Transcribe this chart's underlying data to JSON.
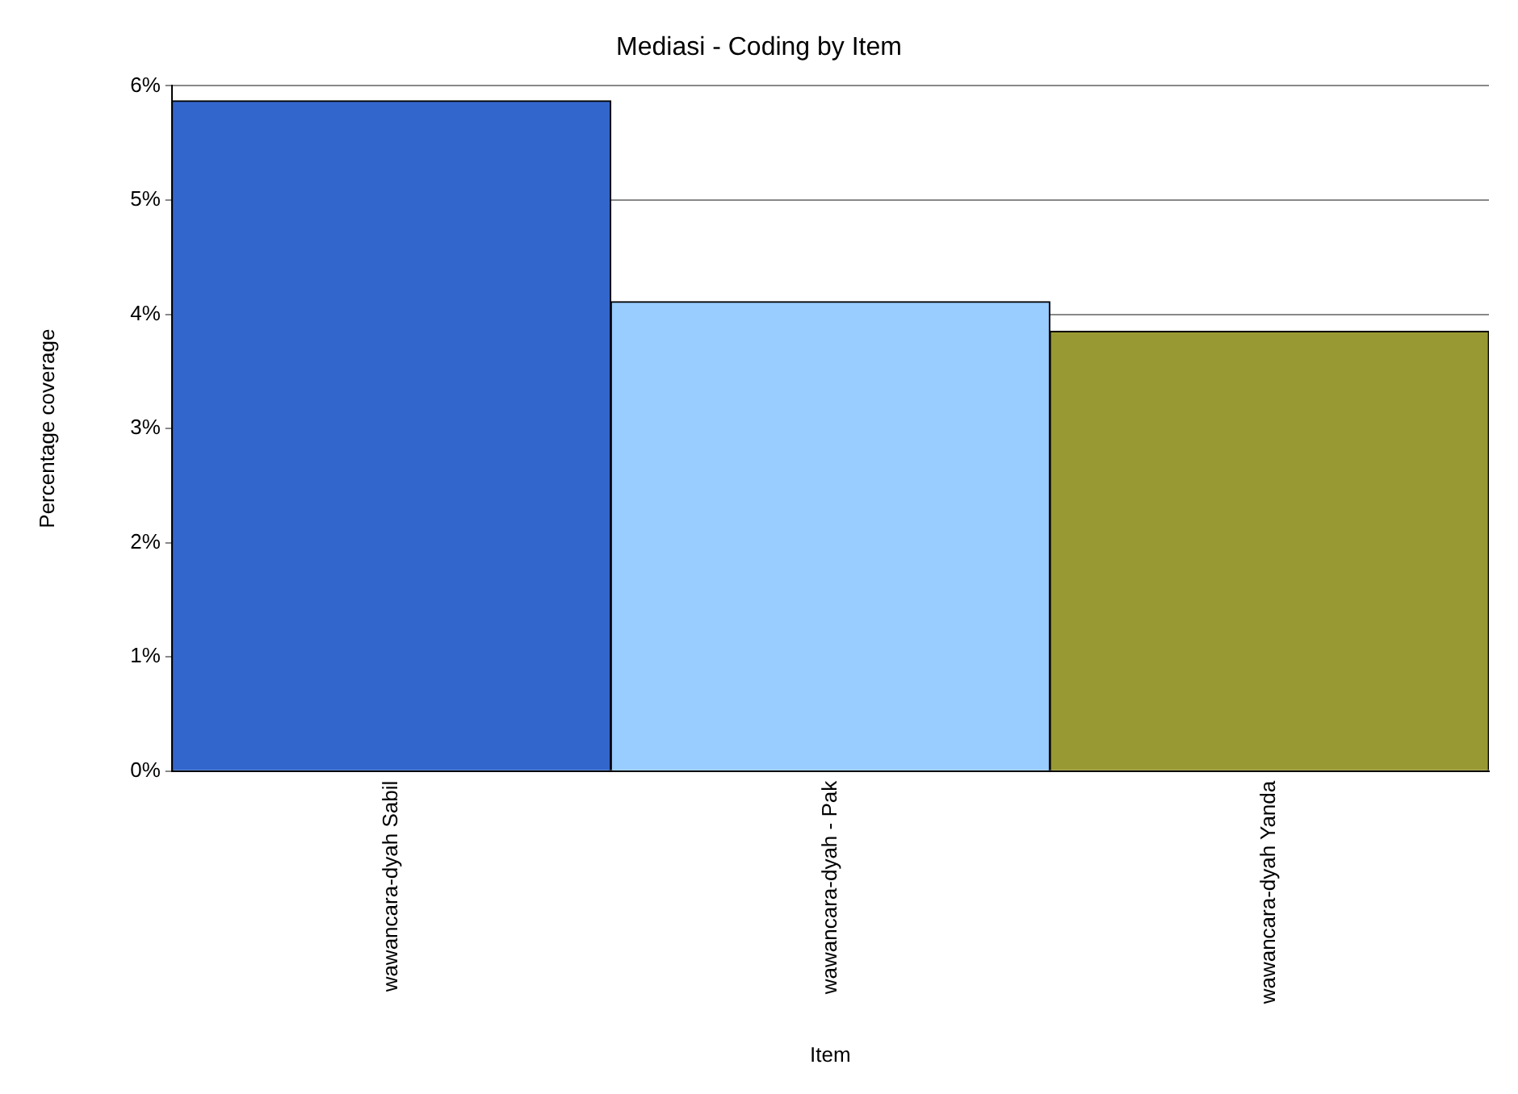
{
  "chart_data": {
    "type": "bar",
    "title": "Mediasi - Coding by Item",
    "xlabel": "Item",
    "ylabel": "Percentage coverage",
    "categories": [
      "wawancara-dyah Sabil",
      "wawancara-dyah - Pak",
      "wawancara-dyah Yanda"
    ],
    "values": [
      5.87,
      4.11,
      3.85
    ],
    "colors": [
      "#3366cc",
      "#99ccff",
      "#999933"
    ],
    "ylim": [
      0,
      6
    ],
    "yticks": [
      {
        "value": 0,
        "label": "0%"
      },
      {
        "value": 1,
        "label": "1%"
      },
      {
        "value": 2,
        "label": "2%"
      },
      {
        "value": 3,
        "label": "3%"
      },
      {
        "value": 4,
        "label": "4%"
      },
      {
        "value": 5,
        "label": "5%"
      },
      {
        "value": 6,
        "label": "6%"
      }
    ],
    "grid": "y",
    "legend": false
  }
}
